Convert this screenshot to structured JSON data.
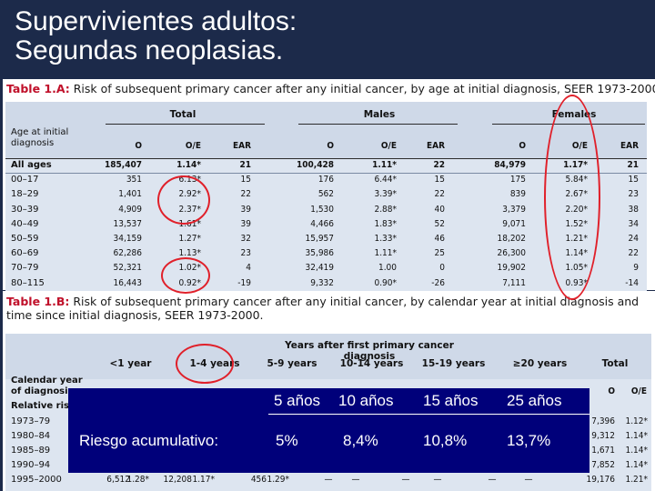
{
  "title": {
    "line1": "Supervivientes adultos:",
    "line2": "Segundas neoplasias."
  },
  "table_a": {
    "label": "Table 1.A:",
    "caption": "Risk of subsequent primary cancer after any initial cancer, by age at initial diagnosis, SEER 1973-2000.",
    "groups": [
      "Total",
      "Males",
      "Females"
    ],
    "row_header": "Age at initial diagnosis",
    "columns": [
      "O",
      "O/E",
      "EAR"
    ],
    "rows": [
      {
        "label": "All ages",
        "cells": [
          "185,407",
          "1.14*",
          "21",
          "100,428",
          "1.11*",
          "22",
          "84,979",
          "1.17*",
          "21"
        ]
      },
      {
        "label": "00–17",
        "cells": [
          "351",
          "6.13*",
          "15",
          "176",
          "6.44*",
          "15",
          "175",
          "5.84*",
          "15"
        ]
      },
      {
        "label": "18–29",
        "cells": [
          "1,401",
          "2.92*",
          "22",
          "562",
          "3.39*",
          "22",
          "839",
          "2.67*",
          "23"
        ]
      },
      {
        "label": "30–39",
        "cells": [
          "4,909",
          "2.37*",
          "39",
          "1,530",
          "2.88*",
          "40",
          "3,379",
          "2.20*",
          "38"
        ]
      },
      {
        "label": "40–49",
        "cells": [
          "13,537",
          "1.61*",
          "39",
          "4,466",
          "1.83*",
          "52",
          "9,071",
          "1.52*",
          "34"
        ]
      },
      {
        "label": "50–59",
        "cells": [
          "34,159",
          "1.27*",
          "32",
          "15,957",
          "1.33*",
          "46",
          "18,202",
          "1.21*",
          "24"
        ]
      },
      {
        "label": "60–69",
        "cells": [
          "62,286",
          "1.13*",
          "23",
          "35,986",
          "1.11*",
          "25",
          "26,300",
          "1.14*",
          "22"
        ]
      },
      {
        "label": "70–79",
        "cells": [
          "52,321",
          "1.02*",
          "4",
          "32,419",
          "1.00",
          "0",
          "19,902",
          "1.05*",
          "9"
        ]
      },
      {
        "label": "80–115",
        "cells": [
          "16,443",
          "0.92*",
          "-19",
          "9,332",
          "0.90*",
          "-26",
          "7,111",
          "0.93*",
          "-14"
        ]
      }
    ]
  },
  "table_b": {
    "label": "Table 1.B:",
    "caption": "Risk of subsequent primary cancer after any initial cancer, by calendar year at initial diagnosis and time since initial diagnosis, SEER 1973-2000.",
    "super_header": "Years after first primary cancer diagnosis",
    "intervals": [
      "<1 year",
      "1-4 years",
      "5-9 years",
      "10-14 years",
      "15-19 years",
      "≥20 years",
      "Total"
    ],
    "row_header": "Calendar year of diagnosis",
    "sub_header": "Relative risks",
    "total_cols": [
      "O",
      "O/E"
    ],
    "rows": [
      {
        "label": "1973–79",
        "total_o": "7,396",
        "total_oe": "1.12*"
      },
      {
        "label": "1980–84",
        "total_o": "9,312",
        "total_oe": "1.14*"
      },
      {
        "label": "1985–89",
        "total_o": "1,671",
        "total_oe": "1.14*"
      },
      {
        "label": "1990–94",
        "total_o": "7,852",
        "total_oe": "1.14*"
      },
      {
        "label": "1995–2000",
        "first": [
          "6,512",
          "1.28*",
          "12,208",
          "1.17*",
          "456",
          "1.29*"
        ],
        "dashes": [
          "—",
          "—",
          "—",
          "—",
          "—",
          "—"
        ],
        "total_o": "19,176",
        "total_oe": "1.21*"
      }
    ]
  },
  "overlay": {
    "headers": [
      "5 años",
      "10 años",
      "15 años",
      "25 años"
    ],
    "row_label": "Riesgo acumulativo:",
    "values": [
      "5%",
      "8,4%",
      "10,8%",
      "13,7%"
    ]
  },
  "colors": {
    "background": "#1c2a4a",
    "table_fill": "#dde5f0",
    "overlay": "#00007a",
    "highlight_ring": "#e0202a",
    "caption_label": "#c0102a"
  }
}
